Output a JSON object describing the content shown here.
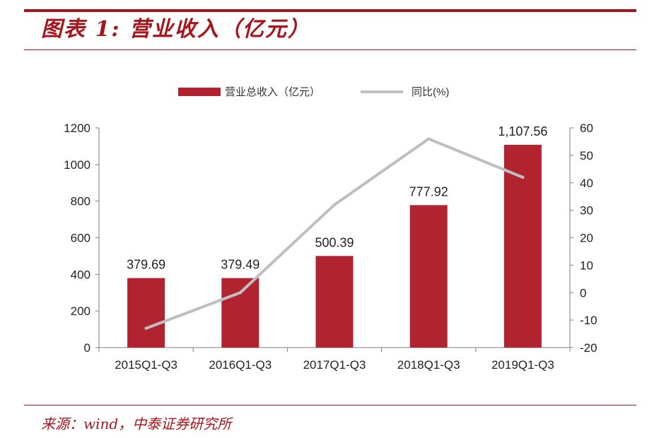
{
  "title": "图表 1:  营业收入（亿元）",
  "source": "来源：wind，中泰证券研究所",
  "colors": {
    "accent": "#a8141c",
    "bar": "#b0232f",
    "line": "#bfbfbf"
  },
  "chart_data": {
    "type": "bar",
    "categories": [
      "2015Q1-Q3",
      "2016Q1-Q3",
      "2017Q1-Q3",
      "2018Q1-Q3",
      "2019Q1-Q3"
    ],
    "series": [
      {
        "name": "营业总收入（亿元）",
        "type": "bar",
        "axis": "left",
        "values": [
          379.69,
          379.49,
          500.39,
          777.92,
          1107.56
        ],
        "labels": [
          "379.69",
          "379.49",
          "500.39",
          "777.92",
          "1,107.56"
        ]
      },
      {
        "name": "同比(%)",
        "type": "line",
        "axis": "right",
        "values": [
          -13,
          0,
          32,
          56,
          42
        ]
      }
    ],
    "y_left": {
      "ticks": [
        "0",
        "200",
        "400",
        "600",
        "800",
        "1000",
        "1200"
      ],
      "min": 0,
      "max": 1200
    },
    "y_right": {
      "ticks": [
        "-20",
        "-10",
        "0",
        "10",
        "20",
        "30",
        "40",
        "50",
        "60"
      ],
      "min": -20,
      "max": 60
    },
    "legend_position": "top-center",
    "grid": false
  }
}
